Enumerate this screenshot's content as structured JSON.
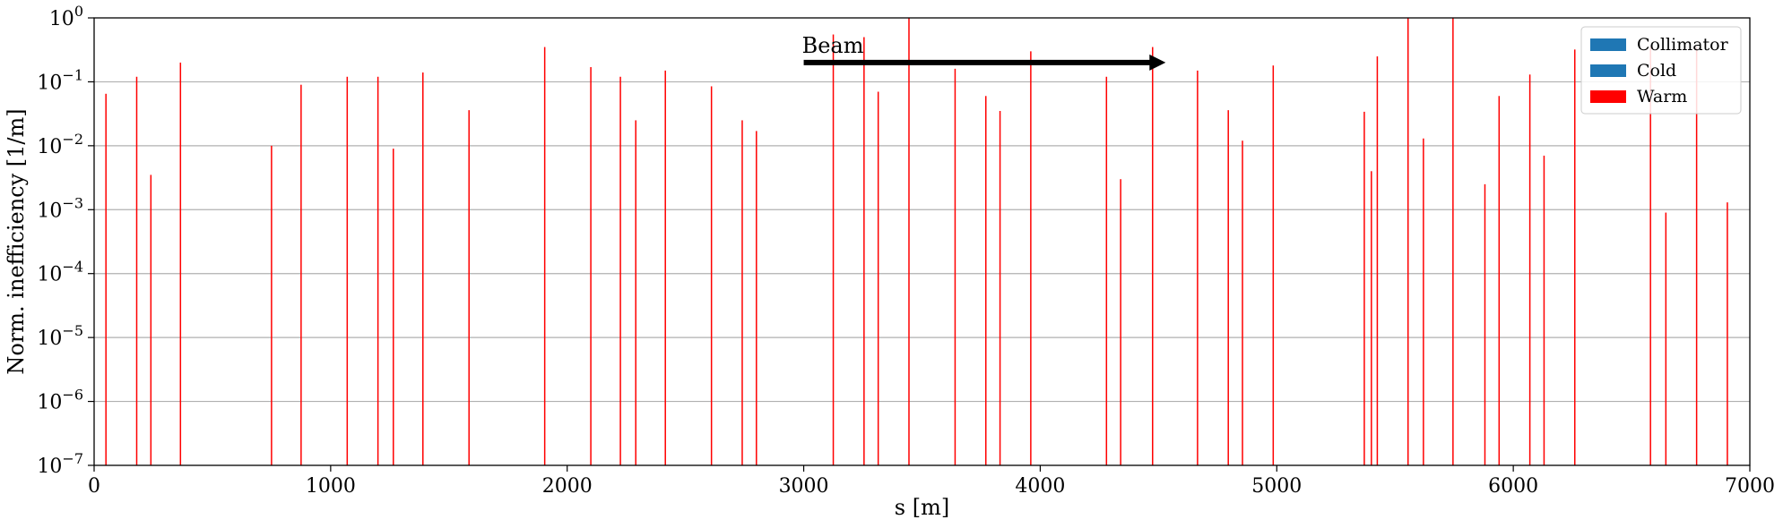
{
  "chart_data": {
    "type": "bar",
    "title": "",
    "xlabel": "s [m]",
    "ylabel": "Norm. inefficiency [1/m]",
    "xlim": [
      0,
      7000
    ],
    "ylim": [
      1e-07,
      1
    ],
    "yscale": "log",
    "grid": "horizontal",
    "xticks": [
      "0",
      "1000",
      "2000",
      "3000",
      "4000",
      "5000",
      "6000",
      "7000"
    ],
    "yticks": [
      {
        "base": "10",
        "exp": "0"
      },
      {
        "base": "10",
        "exp": "−1"
      },
      {
        "base": "10",
        "exp": "−2"
      },
      {
        "base": "10",
        "exp": "−3"
      },
      {
        "base": "10",
        "exp": "−4"
      },
      {
        "base": "10",
        "exp": "−5"
      },
      {
        "base": "10",
        "exp": "−6"
      },
      {
        "base": "10",
        "exp": "−7"
      }
    ],
    "legend": {
      "position": "top-right",
      "entries": [
        {
          "name": "Collimator",
          "color": "#1f77b4"
        },
        {
          "name": "Cold",
          "color": "#1f77b4"
        },
        {
          "name": "Warm",
          "color": "#ff0000"
        }
      ]
    },
    "annotation": {
      "text": "Beam",
      "arrow_from_x": 3000,
      "arrow_to_x": 4530,
      "arrow_y": 0.2
    },
    "series": [
      {
        "name": "Warm",
        "color": "#ff0000",
        "points": [
          {
            "x": 50,
            "y": 0.065
          },
          {
            "x": 180,
            "y": 0.12
          },
          {
            "x": 240,
            "y": 0.0035
          },
          {
            "x": 365,
            "y": 0.2
          },
          {
            "x": 750,
            "y": 0.01
          },
          {
            "x": 875,
            "y": 0.09
          },
          {
            "x": 1070,
            "y": 0.12
          },
          {
            "x": 1200,
            "y": 0.12
          },
          {
            "x": 1265,
            "y": 0.009
          },
          {
            "x": 1390,
            "y": 0.14
          },
          {
            "x": 1585,
            "y": 0.036
          },
          {
            "x": 1905,
            "y": 0.35
          },
          {
            "x": 2100,
            "y": 0.17
          },
          {
            "x": 2225,
            "y": 0.12
          },
          {
            "x": 2290,
            "y": 0.025
          },
          {
            "x": 2415,
            "y": 0.15
          },
          {
            "x": 2610,
            "y": 0.085
          },
          {
            "x": 2740,
            "y": 0.025
          },
          {
            "x": 2800,
            "y": 0.017
          },
          {
            "x": 3125,
            "y": 0.55
          },
          {
            "x": 3255,
            "y": 0.5
          },
          {
            "x": 3315,
            "y": 0.07
          },
          {
            "x": 3445,
            "y": 1.0
          },
          {
            "x": 3640,
            "y": 0.16
          },
          {
            "x": 3770,
            "y": 0.06
          },
          {
            "x": 3830,
            "y": 0.035
          },
          {
            "x": 3960,
            "y": 0.3
          },
          {
            "x": 4280,
            "y": 0.12
          },
          {
            "x": 4340,
            "y": 0.003
          },
          {
            "x": 4475,
            "y": 0.35
          },
          {
            "x": 4665,
            "y": 0.15
          },
          {
            "x": 4795,
            "y": 0.036
          },
          {
            "x": 4855,
            "y": 0.012
          },
          {
            "x": 4985,
            "y": 0.18
          },
          {
            "x": 5370,
            "y": 0.034
          },
          {
            "x": 5400,
            "y": 0.004
          },
          {
            "x": 5425,
            "y": 0.25
          },
          {
            "x": 5555,
            "y": 1.0
          },
          {
            "x": 5620,
            "y": 0.013
          },
          {
            "x": 5745,
            "y": 1.0
          },
          {
            "x": 5880,
            "y": 0.0025
          },
          {
            "x": 5940,
            "y": 0.06
          },
          {
            "x": 6070,
            "y": 0.13
          },
          {
            "x": 6130,
            "y": 0.007
          },
          {
            "x": 6260,
            "y": 0.32
          },
          {
            "x": 6580,
            "y": 0.35
          },
          {
            "x": 6645,
            "y": 0.0009
          },
          {
            "x": 6775,
            "y": 0.35
          },
          {
            "x": 6905,
            "y": 0.0013
          }
        ]
      }
    ]
  }
}
